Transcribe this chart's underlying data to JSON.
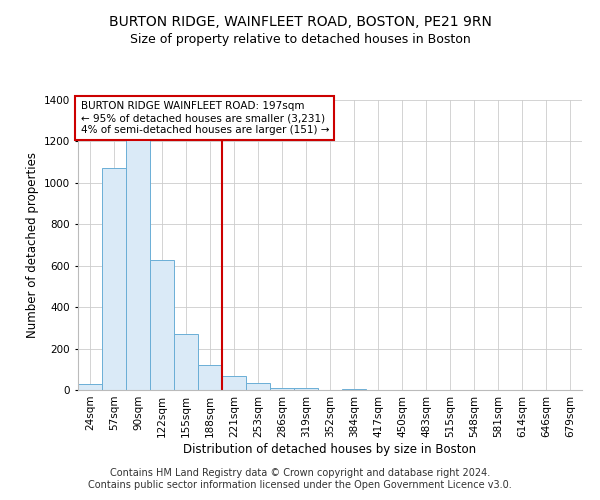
{
  "title": "BURTON RIDGE, WAINFLEET ROAD, BOSTON, PE21 9RN",
  "subtitle": "Size of property relative to detached houses in Boston",
  "xlabel": "Distribution of detached houses by size in Boston",
  "ylabel": "Number of detached properties",
  "footer": "Contains HM Land Registry data © Crown copyright and database right 2024.\nContains public sector information licensed under the Open Government Licence v3.0.",
  "categories": [
    "24sqm",
    "57sqm",
    "90sqm",
    "122sqm",
    "155sqm",
    "188sqm",
    "221sqm",
    "253sqm",
    "286sqm",
    "319sqm",
    "352sqm",
    "384sqm",
    "417sqm",
    "450sqm",
    "483sqm",
    "515sqm",
    "548sqm",
    "581sqm",
    "614sqm",
    "646sqm",
    "679sqm"
  ],
  "values": [
    30,
    1070,
    1240,
    630,
    270,
    120,
    70,
    35,
    10,
    8,
    0,
    6,
    0,
    0,
    0,
    0,
    0,
    0,
    0,
    0,
    0
  ],
  "bar_color": "#daeaf7",
  "bar_edge_color": "#6aaed6",
  "ylim": [
    0,
    1400
  ],
  "yticks": [
    0,
    200,
    400,
    600,
    800,
    1000,
    1200,
    1400
  ],
  "property_line_x": 5.5,
  "property_line_color": "#cc0000",
  "annotation_text": "BURTON RIDGE WAINFLEET ROAD: 197sqm\n← 95% of detached houses are smaller (3,231)\n4% of semi-detached houses are larger (151) →",
  "annotation_box_color": "#cc0000",
  "background_color": "#ffffff",
  "grid_color": "#cccccc",
  "title_fontsize": 10,
  "subtitle_fontsize": 9,
  "tick_label_fontsize": 7.5,
  "axis_label_fontsize": 8.5,
  "footer_fontsize": 7,
  "annotation_fontsize": 7.5
}
